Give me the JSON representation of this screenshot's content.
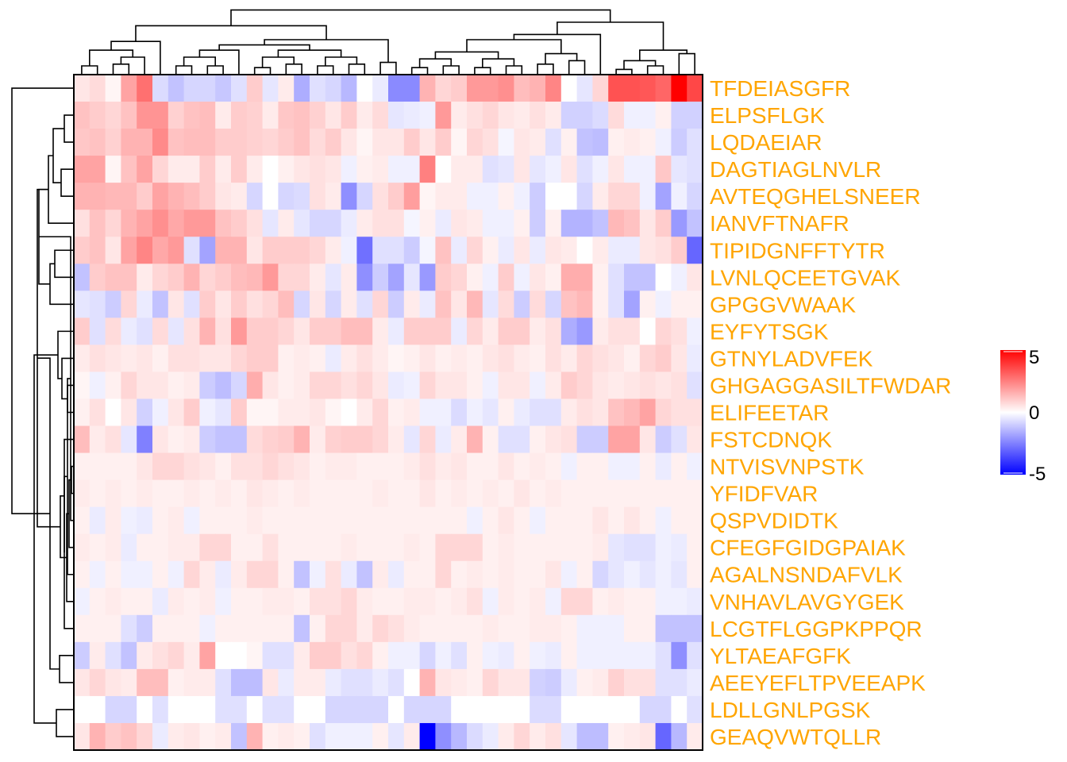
{
  "chart_data": {
    "type": "heatmap",
    "title": "",
    "row_label_color": "#FFA500",
    "rows": [
      "TFDEIASGFR",
      "ELPSFLGK",
      "LQDAEIAR",
      "DAGTIAGLNVLR",
      "AVTEQGHELSNEER",
      "IANVFTNAFR",
      "TIPIDGNFFTYTR",
      "LVNLQCEETGVAK",
      "GPGGVWAAK",
      "EYFYTSGK",
      "GTNYLADVFEK",
      "GHGAGGASILTFWDAR",
      "ELIFEETAR",
      "FSTCDNQK",
      "NTVISVNPSTK",
      "YFIDFVAR",
      "QSPVDIDTK",
      "CFEGFGIDGPAIAK",
      "AGALNSNDAFVLK",
      "VNHAVLAVGYGEK",
      "LCGTFLGGPKPPQR",
      "YLTAEAFGFK",
      "AEEYEFLTPVEEAPK",
      "LDLLGNLPGSK",
      "GEAQVWTQLLR"
    ],
    "n_columns": 40,
    "values": [
      [
        0.5,
        0.7,
        0.2,
        1.8,
        2.8,
        -0.7,
        -1.2,
        -0.8,
        -0.8,
        -1.1,
        -0.6,
        1.0,
        -0.5,
        0.4,
        -1.6,
        -0.6,
        -0.8,
        -1.4,
        0.0,
        -0.4,
        -2.3,
        -2.3,
        1.5,
        0.8,
        1.0,
        2.0,
        2.0,
        2.2,
        1.3,
        1.5,
        2.4,
        0.0,
        -0.5,
        0.8,
        3.4,
        3.4,
        3.3,
        3.0,
        5.0,
        3.6
      ],
      [
        1.2,
        1.0,
        0.8,
        1.2,
        2.1,
        2.1,
        0.9,
        1.2,
        1.3,
        0.4,
        1.0,
        0.9,
        0.4,
        1.1,
        1.2,
        0.9,
        0.5,
        1.0,
        0.4,
        0.7,
        -0.5,
        -0.4,
        -0.3,
        2.0,
        0.4,
        0.6,
        0.8,
        0.5,
        0.4,
        0.6,
        0.4,
        -0.9,
        -0.9,
        -0.7,
        0.7,
        -0.3,
        -0.3,
        0.3,
        -0.9,
        -0.9
      ],
      [
        1.1,
        1.2,
        0.9,
        1.5,
        1.5,
        2.3,
        1.2,
        1.3,
        1.3,
        1.0,
        1.0,
        0.9,
        0.8,
        1.0,
        1.2,
        0.7,
        1.0,
        0.5,
        0.2,
        0.5,
        0.5,
        1.0,
        0.5,
        1.0,
        0.2,
        0.8,
        0.6,
        -0.2,
        0.5,
        0.4,
        -0.6,
        0.3,
        -1.2,
        -1.3,
        0.3,
        0.4,
        0.3,
        -0.3,
        -1.0,
        -0.6
      ],
      [
        1.8,
        1.8,
        0.2,
        1.2,
        1.8,
        0.8,
        0.4,
        0.4,
        1.0,
        0.4,
        1.0,
        0.4,
        0.0,
        0.3,
        0.5,
        0.6,
        0.5,
        -0.3,
        0.3,
        0.4,
        -0.3,
        -0.3,
        2.5,
        0.0,
        0.4,
        0.4,
        -0.6,
        -0.5,
        0.5,
        -0.5,
        -0.3,
        0.5,
        -0.6,
        -0.3,
        0.5,
        -0.3,
        -0.3,
        1.1,
        -0.5,
        -0.6
      ],
      [
        1.5,
        1.5,
        1.4,
        1.4,
        1.0,
        1.8,
        1.5,
        1.3,
        1.0,
        0.5,
        0.4,
        -0.8,
        0.0,
        -0.8,
        -0.7,
        0.6,
        0.4,
        -2.2,
        -0.8,
        0.6,
        1.0,
        1.9,
        0.2,
        0.4,
        0.4,
        -0.3,
        -0.3,
        0.3,
        -0.3,
        -1.0,
        0.0,
        0.0,
        -0.8,
        0.4,
        0.8,
        0.8,
        -0.3,
        -1.8,
        -0.3,
        -0.8
      ],
      [
        0.6,
        1.2,
        0.8,
        1.5,
        1.8,
        2.2,
        1.7,
        2.0,
        2.0,
        1.2,
        1.0,
        0.6,
        -0.5,
        0.4,
        -0.5,
        -0.8,
        -0.8,
        -0.4,
        0.4,
        0.6,
        0.6,
        -0.2,
        0.3,
        -0.4,
        0.5,
        0.4,
        -0.3,
        -0.3,
        0.3,
        -1.0,
        0.3,
        -1.5,
        -1.5,
        -1.2,
        1.4,
        1.2,
        0.5,
        1.0,
        -2.0,
        -1.2
      ],
      [
        1.0,
        1.2,
        0.5,
        1.8,
        2.4,
        1.7,
        2.0,
        -0.6,
        -1.8,
        1.5,
        1.5,
        0.5,
        1.0,
        1.0,
        1.0,
        0.8,
        0.4,
        -0.3,
        -2.8,
        -0.6,
        -0.6,
        -1.0,
        -0.2,
        1.2,
        -0.4,
        0.8,
        0.3,
        -0.4,
        0.5,
        -0.4,
        0.5,
        0.4,
        0.0,
        0.4,
        -0.4,
        -0.4,
        0.5,
        0.6,
        1.0,
        -3.0
      ],
      [
        -1.2,
        1.0,
        1.2,
        1.2,
        0.4,
        0.8,
        1.0,
        1.5,
        0.8,
        1.0,
        1.3,
        1.4,
        2.0,
        0.8,
        0.8,
        0.4,
        -0.5,
        0.4,
        -2.2,
        -1.0,
        -1.8,
        -0.5,
        -2.0,
        1.0,
        0.8,
        0.3,
        -0.3,
        1.0,
        -0.3,
        0.5,
        0.3,
        1.6,
        1.6,
        0.3,
        -0.6,
        -1.2,
        -1.2,
        0.0,
        -0.3,
        0.5
      ],
      [
        -0.5,
        -0.6,
        -1.0,
        0.8,
        -0.4,
        -1.2,
        0.5,
        -0.6,
        1.0,
        0.5,
        1.0,
        0.6,
        0.8,
        1.3,
        -0.8,
        0.5,
        -0.8,
        0.4,
        -0.6,
        0.8,
        -1.0,
        0.4,
        -0.4,
        1.2,
        0.5,
        1.4,
        -0.5,
        0.7,
        -1.0,
        0.7,
        -0.8,
        1.2,
        1.4,
        0.3,
        -0.6,
        -1.8,
        0.3,
        -0.3,
        0.3,
        0.3
      ],
      [
        1.0,
        -0.6,
        0.7,
        -0.4,
        -0.6,
        0.7,
        -0.5,
        0.6,
        1.5,
        0.6,
        2.0,
        1.0,
        1.0,
        0.8,
        0.5,
        1.0,
        1.0,
        1.3,
        1.3,
        0.4,
        -0.4,
        1.0,
        1.0,
        1.0,
        -0.4,
        0.8,
        0.4,
        1.0,
        1.0,
        0.4,
        0.6,
        -1.6,
        -2.0,
        0.4,
        0.6,
        0.6,
        0.0,
        0.8,
        0.6,
        -0.3
      ],
      [
        0.4,
        0.6,
        0.5,
        0.4,
        0.5,
        0.3,
        0.6,
        0.6,
        0.5,
        0.5,
        0.8,
        1.0,
        1.0,
        0.3,
        0.4,
        0.3,
        -0.4,
        0.4,
        0.6,
        0.4,
        0.2,
        0.3,
        0.5,
        0.3,
        0.4,
        0.3,
        0.5,
        0.6,
        0.4,
        0.3,
        0.6,
        0.4,
        0.8,
        0.6,
        0.5,
        0.3,
        0.8,
        1.0,
        0.5,
        -0.4
      ],
      [
        0.2,
        -0.3,
        0.3,
        0.8,
        0.5,
        0.5,
        0.3,
        0.4,
        -1.0,
        -1.3,
        -0.8,
        1.6,
        0.5,
        0.3,
        0.4,
        0.8,
        0.8,
        0.6,
        0.8,
        0.5,
        -0.4,
        -0.3,
        0.8,
        0.5,
        0.5,
        0.3,
        -0.3,
        0.5,
        0.5,
        -0.3,
        0.4,
        1.0,
        0.8,
        0.5,
        0.4,
        0.5,
        0.6,
        0.5,
        0.6,
        -0.6
      ],
      [
        0.3,
        0.6,
        0.0,
        0.5,
        -0.9,
        -0.3,
        0.5,
        1.0,
        -0.3,
        -0.5,
        1.0,
        0.2,
        0.2,
        0.4,
        0.4,
        0.5,
        0.2,
        0.0,
        0.4,
        0.8,
        0.3,
        0.4,
        -0.3,
        -0.3,
        -0.7,
        -0.3,
        -0.5,
        0.3,
        -0.4,
        -0.6,
        -0.6,
        0.4,
        0.6,
        0.5,
        1.2,
        1.4,
        1.8,
        0.8,
        0.6,
        0.6
      ],
      [
        1.3,
        0.4,
        0.6,
        -0.5,
        -2.5,
        0.5,
        0.3,
        0.4,
        -1.0,
        -1.2,
        -1.2,
        0.7,
        0.9,
        1.0,
        1.5,
        0.4,
        0.9,
        1.0,
        1.0,
        0.8,
        0.4,
        -0.5,
        0.8,
        -0.4,
        0.4,
        1.5,
        0.3,
        -0.6,
        -0.6,
        0.3,
        0.5,
        0.6,
        -1.0,
        -1.0,
        1.8,
        1.8,
        0.5,
        -1.0,
        -0.6,
        0.5
      ],
      [
        0.3,
        0.3,
        0.3,
        0.3,
        0.5,
        0.8,
        0.8,
        0.6,
        0.5,
        0.3,
        0.6,
        0.6,
        0.8,
        0.6,
        0.5,
        0.3,
        0.4,
        0.4,
        0.3,
        0.3,
        0.3,
        0.4,
        0.6,
        0.4,
        0.5,
        0.3,
        0.3,
        0.5,
        0.3,
        0.4,
        0.3,
        -0.3,
        0.3,
        0.3,
        -0.3,
        -0.3,
        0.3,
        -0.4,
        0.3,
        -0.3
      ],
      [
        0.4,
        0.3,
        0.4,
        0.3,
        0.4,
        0.3,
        0.3,
        0.4,
        0.3,
        0.4,
        0.3,
        0.5,
        0.4,
        0.3,
        0.4,
        0.3,
        0.3,
        0.3,
        0.3,
        0.4,
        0.3,
        0.3,
        0.5,
        0.3,
        0.4,
        0.3,
        0.4,
        0.3,
        0.5,
        0.3,
        0.4,
        0.3,
        0.3,
        0.3,
        0.3,
        0.3,
        0.3,
        0.3,
        0.3,
        0.3
      ],
      [
        0.3,
        -0.4,
        0.4,
        -0.3,
        -0.4,
        0.3,
        0.4,
        -0.3,
        0.3,
        0.3,
        0.3,
        0.4,
        0.3,
        0.3,
        0.3,
        0.3,
        0.3,
        0.3,
        0.3,
        0.3,
        0.3,
        0.3,
        0.3,
        0.3,
        0.3,
        -0.3,
        0.3,
        0.5,
        0.3,
        -0.3,
        0.3,
        0.3,
        0.3,
        0.5,
        0.3,
        0.5,
        0.3,
        -0.3,
        0.3,
        0.3
      ],
      [
        0.4,
        0.3,
        0.4,
        -0.4,
        0.3,
        0.3,
        0.4,
        0.4,
        0.8,
        0.8,
        0.3,
        0.3,
        0.6,
        0.3,
        0.3,
        0.3,
        0.3,
        0.4,
        0.3,
        0.3,
        0.3,
        0.4,
        0.3,
        0.8,
        0.8,
        0.8,
        0.3,
        0.4,
        0.3,
        0.3,
        0.3,
        0.3,
        0.3,
        0.4,
        -0.5,
        -0.6,
        -0.6,
        -0.3,
        -0.4,
        0.3
      ],
      [
        0.3,
        -0.3,
        0.3,
        -0.3,
        -0.3,
        0.3,
        -0.3,
        0.8,
        0.4,
        -0.4,
        0.4,
        0.8,
        0.8,
        0.3,
        -1.2,
        -0.3,
        0.6,
        -0.4,
        -1.2,
        0.4,
        -0.4,
        0.3,
        0.3,
        0.8,
        0.3,
        0.4,
        0.3,
        0.4,
        0.3,
        0.3,
        0.5,
        -0.3,
        0.3,
        -0.8,
        -0.5,
        -0.3,
        -0.5,
        -0.3,
        -0.5,
        0.3
      ],
      [
        -0.3,
        0.3,
        0.4,
        0.3,
        0.3,
        -0.4,
        0.4,
        0.3,
        0.4,
        -0.3,
        0.3,
        0.3,
        0.4,
        0.4,
        0.3,
        0.6,
        0.6,
        0.8,
        0.4,
        0.3,
        0.3,
        0.4,
        0.4,
        0.3,
        0.4,
        0.6,
        -0.3,
        0.4,
        0.3,
        0.4,
        -0.3,
        0.8,
        0.8,
        0.3,
        0.4,
        0.3,
        0.3,
        -0.3,
        -0.3,
        -0.4
      ],
      [
        0.3,
        0.3,
        0.3,
        -0.6,
        -1.0,
        0.3,
        0.3,
        0.3,
        -0.3,
        0.3,
        0.3,
        0.3,
        0.3,
        0.3,
        -1.2,
        0.3,
        0.8,
        0.8,
        0.4,
        0.8,
        0.6,
        0.4,
        0.3,
        0.3,
        0.3,
        0.3,
        0.4,
        0.3,
        0.3,
        0.4,
        0.4,
        0.3,
        -0.3,
        -0.3,
        -0.3,
        0.3,
        0.3,
        -1.2,
        -1.2,
        -1.2
      ],
      [
        -1.0,
        0.4,
        -0.6,
        -1.2,
        0.4,
        0.6,
        0.8,
        0.4,
        1.8,
        0.0,
        0.0,
        0.2,
        -0.6,
        -0.6,
        0.4,
        1.0,
        1.0,
        0.6,
        0.8,
        0.3,
        -0.3,
        -0.3,
        -0.8,
        -0.3,
        -0.6,
        0.3,
        -0.3,
        -0.4,
        0.3,
        -0.3,
        -0.4,
        0.3,
        -0.3,
        -0.3,
        -0.3,
        -0.3,
        -0.3,
        -0.6,
        -2.2,
        -0.6
      ],
      [
        0.5,
        0.8,
        0.5,
        0.4,
        1.3,
        1.3,
        0.3,
        0.4,
        0.4,
        -0.6,
        -1.3,
        -1.3,
        0.5,
        -0.4,
        0.4,
        0.4,
        -0.4,
        -0.6,
        -0.6,
        -0.4,
        -0.6,
        0.0,
        1.5,
        0.5,
        0.4,
        0.3,
        0.8,
        0.5,
        0.5,
        -0.9,
        -1.0,
        -0.4,
        0.3,
        0.4,
        0.9,
        0.6,
        0.6,
        -0.6,
        -0.6,
        -0.4
      ],
      [
        0.0,
        0.0,
        -0.8,
        -0.8,
        0.0,
        -0.6,
        0.0,
        0.0,
        0.0,
        -0.6,
        -0.6,
        0.0,
        -0.6,
        -0.6,
        0.0,
        0.0,
        -0.8,
        -0.8,
        -0.8,
        -0.8,
        0.0,
        -0.8,
        -0.8,
        -0.8,
        0.0,
        0.0,
        0.0,
        0.0,
        0.0,
        -0.7,
        -0.7,
        0.0,
        0.0,
        0.0,
        0.0,
        0.0,
        -0.8,
        -0.8,
        0.0,
        -0.6
      ],
      [
        0.5,
        1.5,
        1.0,
        1.2,
        0.8,
        -0.4,
        0.4,
        0.5,
        0.3,
        0.4,
        -1.2,
        1.5,
        0.3,
        0.4,
        0.3,
        -0.6,
        -0.3,
        -0.3,
        -0.3,
        0.3,
        -0.5,
        0.4,
        -5.0,
        -2.2,
        -1.4,
        -0.7,
        -0.4,
        0.4,
        0.8,
        0.4,
        0.6,
        -0.5,
        -1.3,
        -1.3,
        0.3,
        0.4,
        0.5,
        -3.0,
        -1.4,
        0.4
      ]
    ],
    "legend": {
      "type": "colorbar",
      "ticks": [
        "5",
        "0",
        "-5"
      ],
      "range": [
        -5,
        5
      ],
      "position": "right",
      "colors": {
        "low": "#0000FF",
        "mid": "#FFFFFF",
        "high": "#FF0000"
      }
    },
    "dendrograms": {
      "row": "left",
      "column": "top"
    }
  }
}
